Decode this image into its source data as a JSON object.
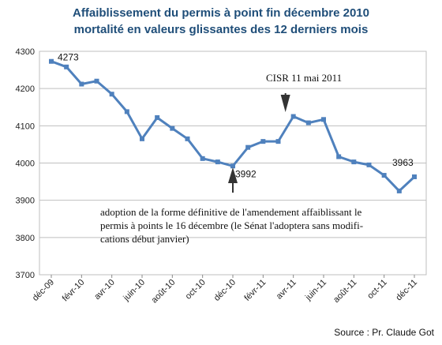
{
  "chart_data": {
    "type": "line",
    "title": "Affaiblissement du permis à point fin décembre 2010",
    "subtitle": "mortalité en valeurs glissantes des 12 derniers mois",
    "ylim": [
      3700,
      4300
    ],
    "yticks": [
      "3700",
      "3800",
      "3900",
      "4000",
      "4100",
      "4200",
      "4300"
    ],
    "x_labels": [
      "déc-09",
      "févr-10",
      "avr-10",
      "juin-10",
      "août-10",
      "oct-10",
      "déc-10",
      "févr-11",
      "avr-11",
      "juin-11",
      "août-11",
      "oct-11",
      "déc-11"
    ],
    "grid": "horizontal",
    "series": [
      {
        "color": "#4f81bd",
        "values": [
          4273,
          4258,
          4212,
          4220,
          4185,
          4138,
          4065,
          4122,
          4093,
          4065,
          4012,
          4003,
          3992,
          4042,
          4058,
          4058,
          4125,
          4108,
          4117,
          4017,
          4003,
          3995,
          3967,
          3925,
          3963
        ]
      }
    ],
    "data_labels": [
      {
        "index": 0,
        "text": "4273"
      },
      {
        "index": 12,
        "text": "3992"
      },
      {
        "index": 24,
        "text": "3963"
      }
    ],
    "annotations": [
      {
        "index": 16,
        "lines": [
          "CISR 11 mai 2011"
        ]
      },
      {
        "index": 12,
        "lines": [
          "adoption de la forme définitive de l'amendement affaiblissant le",
          "permis à points le 16 décembre (le Sénat l'adoptera sans modifi-",
          "cations début janvier)"
        ]
      }
    ]
  },
  "source": "Source : Pr. Claude Got"
}
